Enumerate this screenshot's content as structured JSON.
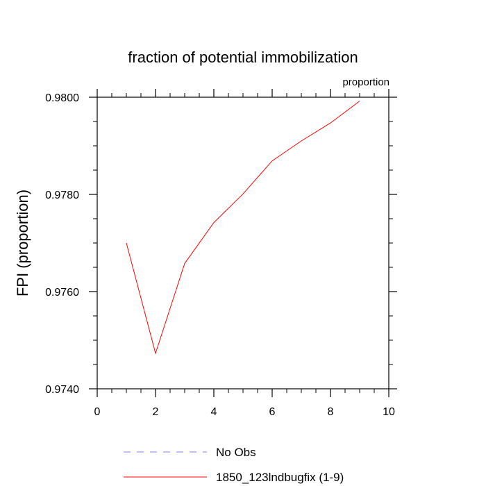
{
  "chart_data": {
    "type": "line",
    "title": "fraction of potential immobilization",
    "units_label": "proportion",
    "ylabel": "FPI  (proportion)",
    "xlabel": "",
    "xlim": [
      0,
      10
    ],
    "ylim": [
      0.974,
      0.98
    ],
    "x_ticks": [
      0,
      2,
      4,
      6,
      8,
      10
    ],
    "x_tick_labels": [
      "0",
      "2",
      "4",
      "6",
      "8",
      "10"
    ],
    "y_ticks": [
      0.974,
      0.976,
      0.978,
      0.98
    ],
    "y_tick_labels": [
      "0.9740",
      "0.9760",
      "0.9780",
      "0.9800"
    ],
    "grid": false,
    "legend_position": "bottom",
    "series": [
      {
        "name": "No Obs",
        "color": "#8080ff",
        "dashed": true,
        "x": [],
        "y": []
      },
      {
        "name": "1850_123lndbugfix (1-9)",
        "color": "#ff0000",
        "dashed": false,
        "x": [
          1,
          2,
          3,
          4,
          5,
          6,
          7,
          8,
          9
        ],
        "y": [
          0.977,
          0.97473,
          0.97658,
          0.97742,
          0.97801,
          0.97869,
          0.9791,
          0.97947,
          0.97992
        ]
      }
    ]
  }
}
